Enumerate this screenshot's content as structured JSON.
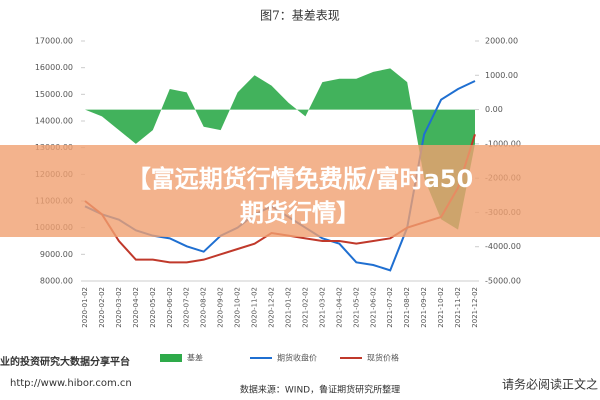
{
  "chart_data": {
    "type": "combo",
    "title": "图7：基差表现",
    "categories": [
      "2020-01-02",
      "2020-02-02",
      "2020-03-02",
      "2020-04-02",
      "2020-05-02",
      "2020-06-02",
      "2020-07-02",
      "2020-08-02",
      "2020-09-02",
      "2020-10-02",
      "2020-11-02",
      "2020-12-02",
      "2021-01-02",
      "2021-02-02",
      "2021-03-02",
      "2021-04-02",
      "2021-05-02",
      "2021-06-02",
      "2021-07-02",
      "2021-08-02",
      "2021-09-02",
      "2021-10-02",
      "2021-11-02",
      "2021-12-02"
    ],
    "series": [
      {
        "name": "基差",
        "type": "area",
        "axis": "y2",
        "color": "#2eaa4a",
        "values": [
          0,
          -200,
          -600,
          -1000,
          -600,
          600,
          500,
          -500,
          -600,
          500,
          1000,
          700,
          200,
          -200,
          800,
          900,
          900,
          1100,
          1200,
          800,
          -2000,
          -3200,
          -3500,
          -1000
        ]
      },
      {
        "name": "期货收盘价",
        "type": "line",
        "color": "#1f6fd1",
        "values": [
          10800,
          10500,
          10300,
          9900,
          9700,
          9600,
          9300,
          9100,
          9700,
          10000,
          10500,
          10800,
          10400,
          10000,
          9600,
          9400,
          8700,
          8600,
          8400,
          10000,
          13500,
          14800,
          15200,
          15500
        ]
      },
      {
        "name": "现货价格",
        "type": "line",
        "color": "#c0392b",
        "values": [
          11000,
          10500,
          9500,
          8800,
          8800,
          8700,
          8700,
          8800,
          9000,
          9200,
          9400,
          9800,
          9700,
          9600,
          9500,
          9500,
          9400,
          9500,
          9600,
          10000,
          10200,
          10400,
          11500,
          13500
        ]
      }
    ],
    "ylim": [
      8000,
      17000
    ],
    "yticks": [
      {
        "value": 8000,
        "label": "8000.00"
      },
      {
        "value": 9000,
        "label": "9000.00"
      },
      {
        "value": 10000,
        "label": "10000.00"
      },
      {
        "value": 11000,
        "label": "11000.00"
      },
      {
        "value": 12000,
        "label": "12000.00"
      },
      {
        "value": 13000,
        "label": "13000.00"
      },
      {
        "value": 14000,
        "label": "14000.00"
      },
      {
        "value": 15000,
        "label": "15000.00"
      },
      {
        "value": 16000,
        "label": "16000.00"
      },
      {
        "value": 17000,
        "label": "17000.00"
      }
    ],
    "y2lim": [
      -5000,
      2000
    ],
    "y2ticks": [
      {
        "value": -5000,
        "label": "-5000.00"
      },
      {
        "value": -4000,
        "label": "-4000.00"
      },
      {
        "value": -3000,
        "label": "-3000.00"
      },
      {
        "value": -2000,
        "label": "-2000.00"
      },
      {
        "value": -1000,
        "label": "-1000.00"
      },
      {
        "value": 0,
        "label": "0.00"
      },
      {
        "value": 1000,
        "label": "1000.00"
      },
      {
        "value": 2000,
        "label": "2000.00"
      }
    ],
    "source": "数据来源：WIND，鲁证期货研究所整理"
  },
  "overlay": {
    "banner": "【富远期货行情免费版/富时a50期货行情】",
    "platform": "业的投资研究大数据分享平台",
    "url": "http://www.hibor.com.cn",
    "notice": "请务必阅读正文之"
  }
}
